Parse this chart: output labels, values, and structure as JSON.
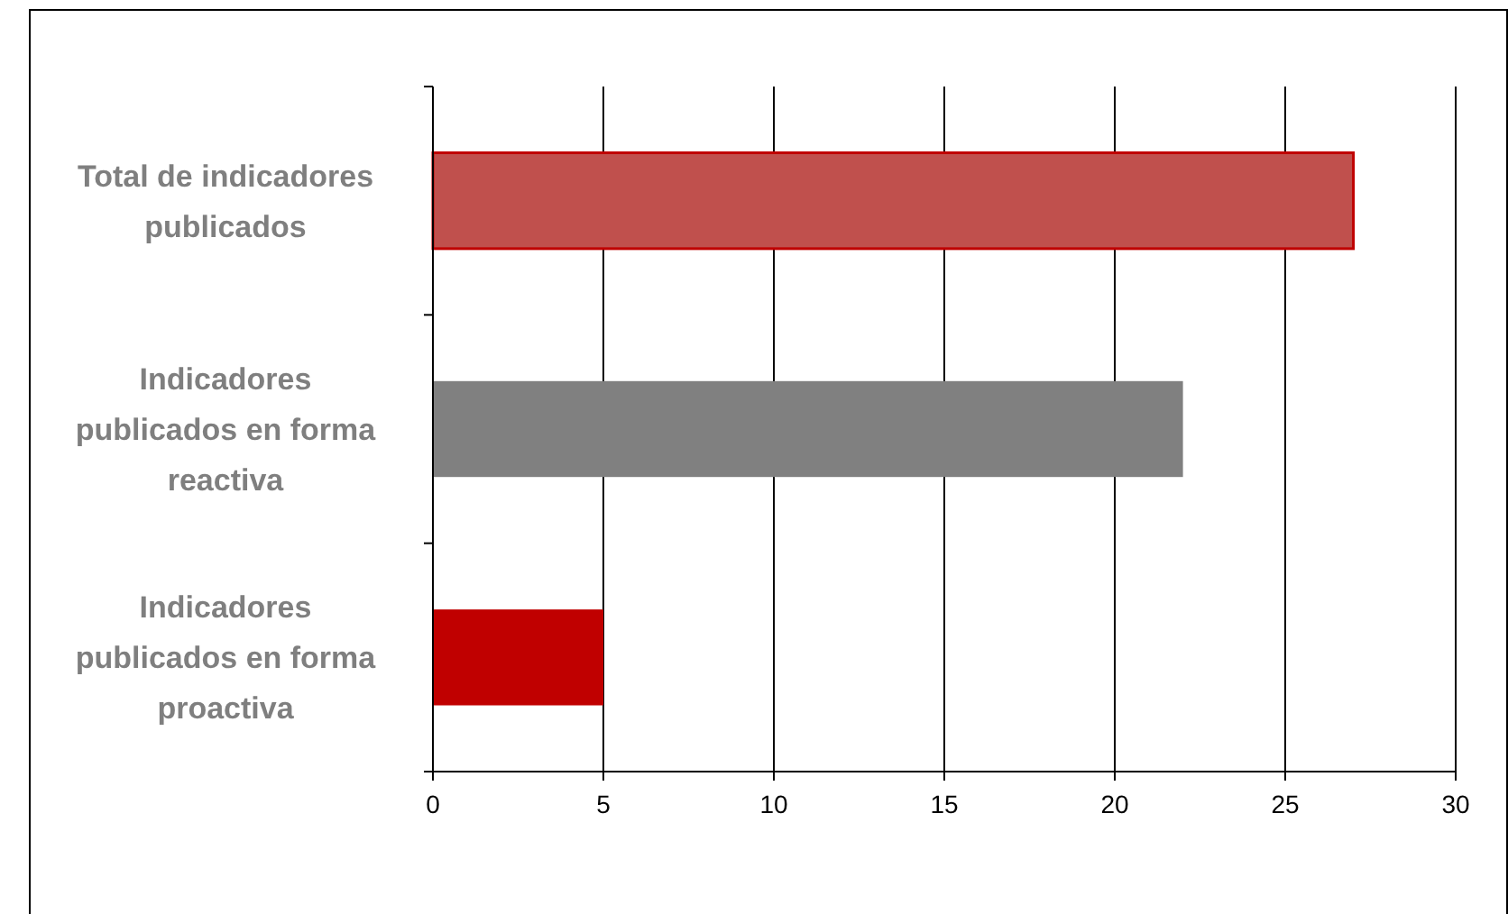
{
  "chart_data": {
    "type": "bar",
    "orientation": "horizontal",
    "categories": [
      "Total de indicadores publicados",
      "Indicadores publicados en forma reactiva",
      "Indicadores publicados en forma proactiva"
    ],
    "values": [
      27,
      22,
      5
    ],
    "colors": [
      "#c0504d",
      "#808080",
      "#c00000"
    ],
    "xlim": [
      0,
      30
    ],
    "xticks": [
      0,
      5,
      10,
      15,
      20,
      25,
      30
    ],
    "grid": "x"
  }
}
